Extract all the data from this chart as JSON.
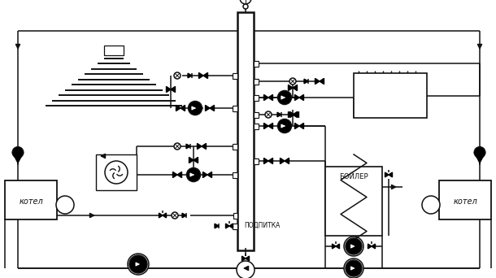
{
  "bg": "#ffffff",
  "lc": "#111111",
  "lw": 1.1,
  "figsize": [
    6.1,
    3.42
  ],
  "dpi": 100,
  "kotel_left": "котел",
  "kotel_right": "котел",
  "boiler_label": "БОЙЛЕР",
  "podpitka": "ПОДПИТКА"
}
